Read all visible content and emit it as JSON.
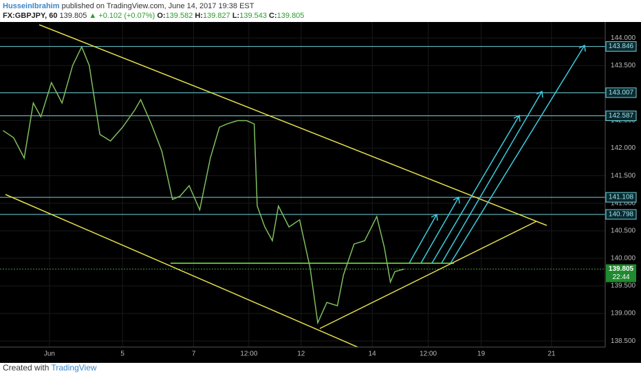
{
  "header": {
    "author": "HusseinIbrahim",
    "published": "published on TradingView.com, June 14, 2017 19:38 EST",
    "symbol": "FX:GBPJPY, 60",
    "price": "139.805",
    "change": "▲ +0.102 (+0.07%)",
    "ohlc": [
      {
        "key": "O:",
        "value": "139.582"
      },
      {
        "key": "H:",
        "value": "139.827"
      },
      {
        "key": "L:",
        "value": "139.543"
      },
      {
        "key": "C:",
        "value": "139.805"
      }
    ]
  },
  "chart_data": {
    "type": "line",
    "x": [
      2,
      9,
      16,
      22,
      27,
      34,
      41,
      48,
      54,
      59,
      66,
      73,
      81,
      89,
      93,
      100,
      107,
      114,
      119,
      125,
      132,
      139,
      145,
      150,
      157,
      163,
      168,
      170,
      175,
      180,
      184,
      191,
      198,
      205,
      210,
      216,
      223,
      227,
      234,
      241,
      249,
      254,
      258,
      261,
      267
    ],
    "series": [
      {
        "name": "FX:GBPJPY",
        "color": "#7fbf5f",
        "values": [
          142.32,
          142.19,
          141.82,
          142.82,
          142.57,
          143.19,
          142.82,
          143.5,
          143.84,
          143.5,
          142.25,
          142.13,
          142.38,
          142.69,
          142.88,
          142.44,
          141.94,
          141.07,
          141.13,
          141.32,
          140.88,
          141.82,
          142.38,
          142.44,
          142.5,
          142.5,
          142.44,
          140.95,
          140.57,
          140.32,
          140.95,
          140.57,
          140.7,
          139.82,
          138.83,
          139.2,
          139.14,
          139.7,
          140.26,
          140.32,
          140.76,
          140.2,
          139.57,
          139.76,
          139.805
        ]
      }
    ],
    "xlim": [
      0,
      400
    ],
    "xticks": [
      {
        "value": 32.7,
        "label": "Jun"
      },
      {
        "value": 81,
        "label": "5"
      },
      {
        "value": 128,
        "label": "7"
      },
      {
        "value": 164.5,
        "label": "12:00"
      },
      {
        "value": 199,
        "label": "12"
      },
      {
        "value": 246,
        "label": "14"
      },
      {
        "value": 283,
        "label": "12:00"
      },
      {
        "value": 318,
        "label": "19"
      },
      {
        "value": 364.5,
        "label": "21"
      }
    ],
    "ylim": [
      138.39,
      144.29
    ],
    "yticks": [
      {
        "value": 138.5,
        "label": "138.500"
      },
      {
        "value": 139,
        "label": "139.000"
      },
      {
        "value": 139.5,
        "label": "139.500"
      },
      {
        "value": 140,
        "label": "140.000"
      },
      {
        "value": 140.5,
        "label": "140.500"
      },
      {
        "value": 141,
        "label": "141.000"
      },
      {
        "value": 141.5,
        "label": "141.500"
      },
      {
        "value": 142,
        "label": "142.000"
      },
      {
        "value": 142.5,
        "label": "142.500"
      },
      {
        "value": 143,
        "label": "143.000"
      },
      {
        "value": 143.5,
        "label": "143.500"
      },
      {
        "value": 144,
        "label": "144.000"
      }
    ],
    "levels": [
      143.846,
      143.007,
      142.587,
      141.108,
      140.798
    ],
    "level_color": "#6fd3dc",
    "last_price": 139.805,
    "countdown": "22:44",
    "grid": true
  },
  "footer": {
    "created": "Created with",
    "brand": "TradingView"
  }
}
